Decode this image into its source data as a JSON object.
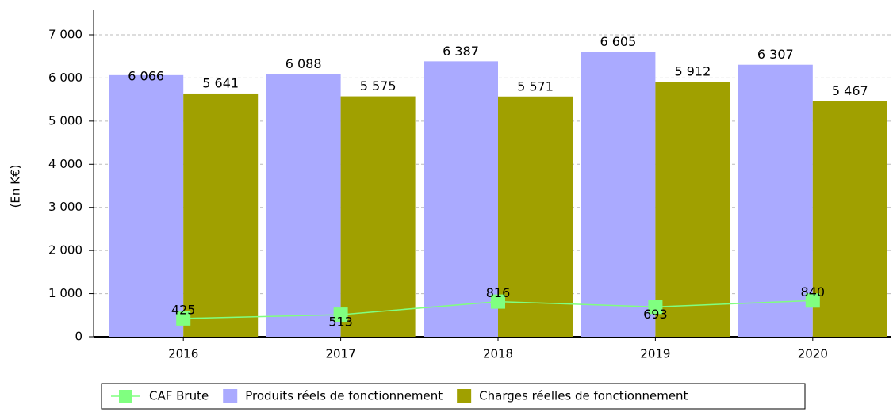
{
  "chart_data": {
    "type": "bar",
    "ylabel": "(En K€)",
    "categories": [
      "2016",
      "2017",
      "2018",
      "2019",
      "2020"
    ],
    "ylim": [
      0,
      7000
    ],
    "yticks": [
      0,
      {
        "value": 1000,
        "label": "1 000"
      },
      {
        "value": 2000,
        "label": "2 000"
      },
      {
        "value": 3000,
        "label": "3 000"
      },
      {
        "value": 4000,
        "label": "4 000"
      },
      {
        "value": 5000,
        "label": "5 000"
      },
      {
        "value": 6000,
        "label": "6 000"
      },
      {
        "value": 7000,
        "label": "7 000"
      }
    ],
    "grid": true,
    "legend": "bottom",
    "series": [
      {
        "name": "CAF Brute",
        "type": "line",
        "color": "#80ff80",
        "values": [
          425,
          513,
          816,
          693,
          840
        ]
      },
      {
        "name": "Produits réels de fonctionnement",
        "type": "bar",
        "color": "#aaaaff",
        "values": [
          6066,
          6088,
          6387,
          6605,
          6307
        ],
        "value_labels": [
          "6 066",
          "6 088",
          "6 387",
          "6 605",
          "6 307"
        ]
      },
      {
        "name": "Charges réelles de fonctionnement",
        "type": "bar",
        "color": "#a0a000",
        "values": [
          5641,
          5575,
          5571,
          5912,
          5467
        ],
        "value_labels": [
          "5 641",
          "5 575",
          "5 571",
          "5 912",
          "5 467"
        ]
      }
    ]
  }
}
